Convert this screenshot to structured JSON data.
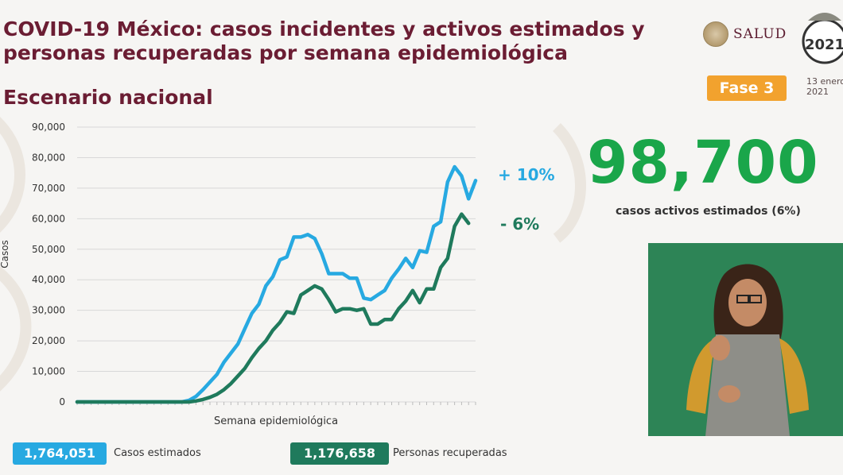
{
  "header": {
    "title": "COVID-19 México: casos incidentes y activos estimados y personas recuperadas por semana epidemiológica",
    "subtitle": "Escenario nacional",
    "logo_text": "SALUD",
    "year_logo_text": "2021",
    "phase_label": "Fase 3",
    "date_line1": "13 enero",
    "date_line2": "2021"
  },
  "highlight": {
    "value": "98,700",
    "caption": "casos activos estimados (6%)",
    "color": "#1aa64a"
  },
  "changes": {
    "estimated": "+ 10%",
    "recovered": "- 6%"
  },
  "legend": {
    "estimated_total": "1,764,051",
    "estimated_label": "Casos estimados",
    "recovered_total": "1,176,658",
    "recovered_label": "Personas recuperadas"
  },
  "colors": {
    "estimated": "#27a9e1",
    "recovered": "#1f7a5c"
  },
  "chart_data": {
    "type": "line",
    "xlabel": "Semana epidemiológica",
    "ylabel": "Casos",
    "ylim": [
      0,
      90000
    ],
    "yticks": [
      "0",
      "10,000",
      "20,000",
      "30,000",
      "40,000",
      "50,000",
      "60,000",
      "70,000",
      "80,000",
      "90,000"
    ],
    "grid": true,
    "series": [
      {
        "name": "Casos estimados",
        "values": [
          0,
          0,
          0,
          0,
          0,
          0,
          0,
          0,
          0,
          0,
          0,
          0,
          0,
          0,
          0,
          0,
          500,
          1800,
          4000,
          6500,
          9000,
          13000,
          16000,
          19000,
          24000,
          29000,
          32000,
          38000,
          41000,
          46500,
          47500,
          54000,
          54000,
          54800,
          53500,
          48500,
          42000,
          42000,
          42000,
          40500,
          40500,
          34000,
          33500,
          35000,
          36500,
          40500,
          43500,
          47000,
          44000,
          49500,
          49000,
          57500,
          59000,
          72000,
          77000,
          74000,
          66500,
          72500
        ]
      },
      {
        "name": "Personas recuperadas",
        "values": [
          0,
          0,
          0,
          0,
          0,
          0,
          0,
          0,
          0,
          0,
          0,
          0,
          0,
          0,
          0,
          0,
          0,
          300,
          800,
          1500,
          2500,
          4000,
          6000,
          8500,
          11000,
          14500,
          17500,
          20000,
          23500,
          26000,
          29500,
          29000,
          35000,
          36500,
          38000,
          37000,
          33500,
          29500,
          30500,
          30500,
          30000,
          30500,
          25500,
          25500,
          27000,
          27000,
          30500,
          33000,
          36500,
          32500,
          37000,
          37000,
          44000,
          47000,
          57500,
          61500,
          58500
        ]
      }
    ]
  }
}
